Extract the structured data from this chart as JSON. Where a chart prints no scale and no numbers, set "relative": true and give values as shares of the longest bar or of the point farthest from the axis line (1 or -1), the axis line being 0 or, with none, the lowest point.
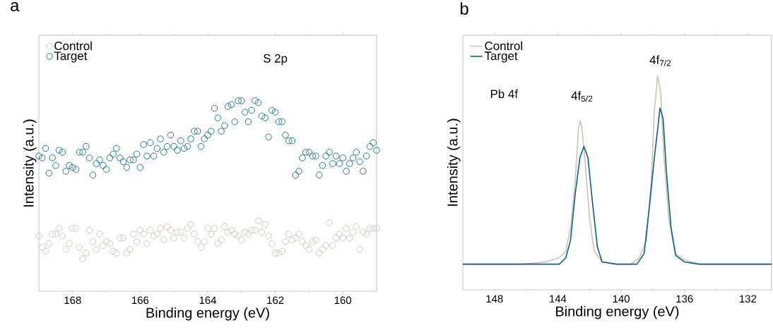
{
  "chart_data": [
    {
      "type": "scatter",
      "title": "a",
      "xlabel": "Binding energy (eV)",
      "ylabel": "Intensity (a.u.)",
      "relative": true,
      "xlim": [
        169.0,
        159.0
      ],
      "xticks": [
        168,
        166,
        164,
        162,
        160
      ],
      "legend": "top left",
      "marker": "circle",
      "annotations": [
        "S 2p"
      ],
      "series": [
        {
          "name": "Control",
          "color": "#d4ccbc",
          "x": [
            169.0,
            168.9,
            168.8,
            168.7,
            168.6,
            168.5,
            168.4,
            168.3,
            168.2,
            168.1,
            168.0,
            167.9,
            167.8,
            167.7,
            167.6,
            167.5,
            167.4,
            167.3,
            167.2,
            167.1,
            167.0,
            166.9,
            166.8,
            166.7,
            166.6,
            166.5,
            166.4,
            166.3,
            166.2,
            166.1,
            166.0,
            165.9,
            165.8,
            165.7,
            165.6,
            165.5,
            165.4,
            165.3,
            165.2,
            165.1,
            165.0,
            164.9,
            164.8,
            164.7,
            164.6,
            164.5,
            164.4,
            164.3,
            164.2,
            164.1,
            164.0,
            163.9,
            163.8,
            163.7,
            163.6,
            163.5,
            163.4,
            163.3,
            163.2,
            163.1,
            163.0,
            162.9,
            162.8,
            162.7,
            162.6,
            162.5,
            162.4,
            162.3,
            162.2,
            162.1,
            162.0,
            161.9,
            161.8,
            161.7,
            161.6,
            161.5,
            161.4,
            161.3,
            161.2,
            161.1,
            161.0,
            160.9,
            160.8,
            160.7,
            160.6,
            160.5,
            160.4,
            160.3,
            160.2,
            160.1,
            160.0,
            159.9,
            159.8,
            159.7,
            159.6,
            159.5,
            159.4,
            159.3,
            159.2,
            159.1,
            159.0
          ],
          "values": [
            0.29,
            0.23,
            0.21,
            0.25,
            0.3,
            0.3,
            0.33,
            0.29,
            0.22,
            0.25,
            0.33,
            0.33,
            0.23,
            0.17,
            0.2,
            0.32,
            0.26,
            0.22,
            0.3,
            0.24,
            0.26,
            0.25,
            0.21,
            0.2,
            0.28,
            0.28,
            0.2,
            0.22,
            0.3,
            0.26,
            0.32,
            0.3,
            0.25,
            0.32,
            0.29,
            0.3,
            0.33,
            0.27,
            0.34,
            0.32,
            0.28,
            0.31,
            0.31,
            0.28,
            0.33,
            0.35,
            0.3,
            0.26,
            0.23,
            0.26,
            0.33,
            0.3,
            0.33,
            0.25,
            0.27,
            0.34,
            0.31,
            0.32,
            0.3,
            0.29,
            0.27,
            0.31,
            0.3,
            0.32,
            0.32,
            0.37,
            0.31,
            0.35,
            0.29,
            0.25,
            0.2,
            0.2,
            0.21,
            0.26,
            0.3,
            0.27,
            0.28,
            0.3,
            0.26,
            0.24,
            0.22,
            0.26,
            0.27,
            0.2,
            0.22,
            0.24,
            0.36,
            0.24,
            0.28,
            0.3,
            0.28,
            0.33,
            0.28,
            0.31,
            0.34,
            0.22,
            0.31,
            0.3,
            0.33,
            0.33,
            0.33
          ]
        },
        {
          "name": "Target",
          "color": "#2b7896",
          "x": [
            169.0,
            168.9,
            168.8,
            168.7,
            168.6,
            168.5,
            168.4,
            168.3,
            168.2,
            168.1,
            168.0,
            167.9,
            167.8,
            167.7,
            167.6,
            167.5,
            167.4,
            167.3,
            167.2,
            167.1,
            167.0,
            166.9,
            166.8,
            166.7,
            166.6,
            166.5,
            166.4,
            166.3,
            166.2,
            166.1,
            166.0,
            165.9,
            165.8,
            165.7,
            165.6,
            165.5,
            165.4,
            165.3,
            165.2,
            165.1,
            165.0,
            164.9,
            164.8,
            164.7,
            164.6,
            164.5,
            164.4,
            164.3,
            164.2,
            164.1,
            164.0,
            163.9,
            163.8,
            163.7,
            163.6,
            163.5,
            163.4,
            163.3,
            163.2,
            163.1,
            163.0,
            162.9,
            162.8,
            162.7,
            162.6,
            162.5,
            162.4,
            162.3,
            162.2,
            162.1,
            162.0,
            161.9,
            161.8,
            161.7,
            161.6,
            161.5,
            161.4,
            161.3,
            161.2,
            161.1,
            161.0,
            160.9,
            160.8,
            160.7,
            160.6,
            160.5,
            160.4,
            160.3,
            160.2,
            160.1,
            160.0,
            159.9,
            159.8,
            159.7,
            159.6,
            159.5,
            159.4,
            159.3,
            159.2,
            159.1,
            159.0
          ],
          "values": [
            0.71,
            0.7,
            0.75,
            0.62,
            0.7,
            0.66,
            0.74,
            0.73,
            0.63,
            0.66,
            0.65,
            0.64,
            0.73,
            0.73,
            0.76,
            0.7,
            0.61,
            0.67,
            0.69,
            0.66,
            0.64,
            0.7,
            0.72,
            0.75,
            0.7,
            0.68,
            0.65,
            0.69,
            0.69,
            0.72,
            0.65,
            0.77,
            0.71,
            0.78,
            0.71,
            0.75,
            0.8,
            0.73,
            0.76,
            0.82,
            0.76,
            0.74,
            0.79,
            0.75,
            0.76,
            0.8,
            0.84,
            0.84,
            0.76,
            0.8,
            0.82,
            0.84,
            0.96,
            0.91,
            0.84,
            0.87,
            0.97,
            0.98,
            0.89,
            1.0,
            1.0,
            0.94,
            0.89,
            0.95,
            1.0,
            0.99,
            0.92,
            0.91,
            0.81,
            0.95,
            0.94,
            0.89,
            0.89,
            0.82,
            0.79,
            0.79,
            0.61,
            0.63,
            0.7,
            0.73,
            0.73,
            0.71,
            0.71,
            0.61,
            0.66,
            0.71,
            0.73,
            0.67,
            0.71,
            0.67,
            0.7,
            0.63,
            0.67,
            0.7,
            0.73,
            0.68,
            0.63,
            0.71,
            0.76,
            0.78,
            0.74
          ]
        }
      ]
    },
    {
      "type": "line",
      "title": "b",
      "xlabel": "Binding energy (eV)",
      "ylabel": "Intensity (a.u.)",
      "relative": true,
      "xlim": [
        150.0,
        130.5
      ],
      "xticks": [
        148,
        144,
        140,
        136,
        132
      ],
      "legend": "top left",
      "line_style": "solid",
      "annotations": [
        "Pb 4f",
        "4f$_{5/2}$",
        "4f$_{7/2}$"
      ],
      "series": [
        {
          "name": "Control",
          "color": "#cdc3b3",
          "x": [
            150.0,
            148.1,
            146.3,
            144.8,
            143.9,
            143.5,
            143.2,
            142.9,
            142.7,
            142.6,
            142.5,
            142.3,
            142.0,
            141.7,
            141.2,
            140.3,
            139.4,
            138.85,
            138.4,
            138.1,
            137.9,
            137.7,
            137.5,
            137.3,
            137.0,
            136.6,
            136.0,
            135.1,
            130.5
          ],
          "values": [
            0.12,
            0.12,
            0.12,
            0.13,
            0.15,
            0.18,
            0.29,
            0.51,
            0.75,
            0.79,
            0.77,
            0.62,
            0.34,
            0.18,
            0.13,
            0.12,
            0.12,
            0.15,
            0.23,
            0.51,
            0.84,
            1.0,
            0.92,
            0.62,
            0.34,
            0.17,
            0.14,
            0.12,
            0.12
          ]
        },
        {
          "name": "Target",
          "color": "#135f80",
          "x": [
            150.0,
            148.1,
            146.3,
            143.9,
            143.5,
            143.2,
            142.9,
            142.6,
            142.35,
            142.1,
            141.8,
            141.5,
            141.2,
            140.3,
            139.0,
            138.55,
            138.2,
            137.9,
            137.65,
            137.55,
            137.35,
            137.15,
            136.85,
            136.55,
            136.0,
            135.1,
            130.5
          ],
          "values": [
            0.12,
            0.12,
            0.12,
            0.12,
            0.15,
            0.23,
            0.45,
            0.62,
            0.67,
            0.62,
            0.4,
            0.2,
            0.13,
            0.12,
            0.12,
            0.17,
            0.4,
            0.62,
            0.78,
            0.85,
            0.8,
            0.56,
            0.29,
            0.16,
            0.13,
            0.12,
            0.12
          ]
        }
      ]
    }
  ]
}
